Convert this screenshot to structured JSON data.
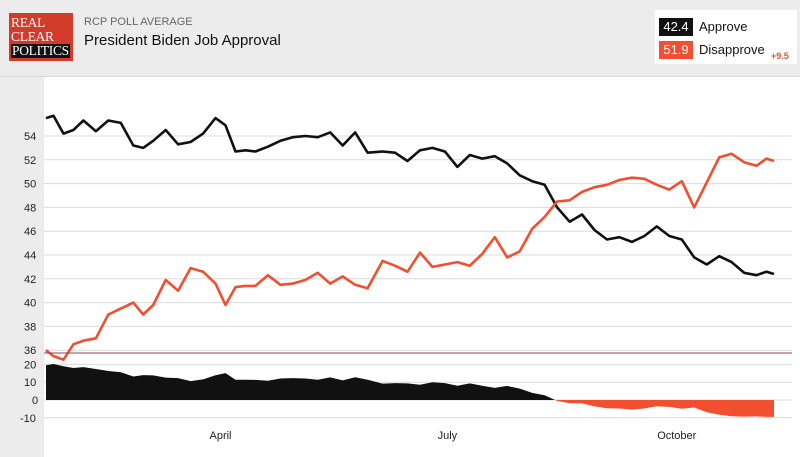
{
  "header": {
    "logo_lines": [
      "REAL",
      "CLEAR",
      "POLITICS"
    ],
    "kicker": "RCP POLL AVERAGE",
    "title": "President Biden Job Approval"
  },
  "legend": {
    "approve": {
      "value": "42.4",
      "label": "Approve",
      "color": "#111111"
    },
    "disapprove": {
      "value": "51.9",
      "label": "Disapprove",
      "color": "#f14f2f"
    },
    "spread": "+9.5"
  },
  "chart_data": {
    "type": "line",
    "x": [
      "2021-01-21",
      "2021-01-24",
      "2021-01-28",
      "2021-02-01",
      "2021-02-05",
      "2021-02-10",
      "2021-02-15",
      "2021-02-20",
      "2021-02-25",
      "2021-03-01",
      "2021-03-05",
      "2021-03-10",
      "2021-03-15",
      "2021-03-20",
      "2021-03-25",
      "2021-03-30",
      "2021-04-03",
      "2021-04-07",
      "2021-04-11",
      "2021-04-15",
      "2021-04-20",
      "2021-04-25",
      "2021-04-30",
      "2021-05-05",
      "2021-05-10",
      "2021-05-15",
      "2021-05-20",
      "2021-05-25",
      "2021-05-30",
      "2021-06-05",
      "2021-06-10",
      "2021-06-15",
      "2021-06-20",
      "2021-06-25",
      "2021-06-30",
      "2021-07-05",
      "2021-07-10",
      "2021-07-15",
      "2021-07-20",
      "2021-07-25",
      "2021-07-30",
      "2021-08-04",
      "2021-08-09",
      "2021-08-14",
      "2021-08-19",
      "2021-08-24",
      "2021-08-29",
      "2021-09-03",
      "2021-09-08",
      "2021-09-13",
      "2021-09-18",
      "2021-09-23",
      "2021-09-28",
      "2021-10-03",
      "2021-10-08",
      "2021-10-13",
      "2021-10-18",
      "2021-10-23",
      "2021-10-28",
      "2021-11-02",
      "2021-11-06",
      "2021-11-09"
    ],
    "series": [
      {
        "name": "Approve",
        "color": "#111111",
        "values": [
          55.5,
          55.7,
          54.2,
          54.5,
          55.3,
          54.4,
          55.3,
          55.1,
          53.2,
          53.0,
          53.6,
          54.5,
          53.3,
          53.5,
          54.2,
          55.5,
          54.9,
          52.7,
          52.8,
          52.7,
          53.1,
          53.6,
          53.9,
          54.0,
          53.9,
          54.3,
          53.2,
          54.3,
          52.6,
          52.7,
          52.6,
          51.9,
          52.8,
          53.0,
          52.7,
          51.4,
          52.4,
          52.1,
          52.3,
          51.7,
          50.7,
          50.2,
          49.9,
          48.0,
          46.8,
          47.4,
          46.1,
          45.3,
          45.5,
          45.1,
          45.6,
          46.4,
          45.6,
          45.3,
          43.8,
          43.2,
          43.9,
          43.4,
          42.5,
          42.3,
          42.6,
          42.4
        ]
      },
      {
        "name": "Disapprove",
        "color": "#f14f2f",
        "values": [
          36.0,
          35.5,
          35.2,
          36.5,
          36.8,
          37.0,
          39.0,
          39.5,
          40.0,
          39.0,
          39.8,
          41.9,
          41.0,
          42.9,
          42.6,
          41.6,
          39.8,
          41.3,
          41.4,
          41.4,
          42.3,
          41.5,
          41.6,
          41.9,
          42.5,
          41.6,
          42.2,
          41.5,
          41.2,
          43.5,
          43.1,
          42.6,
          44.2,
          43.0,
          43.2,
          43.4,
          43.1,
          44.1,
          45.5,
          43.8,
          44.3,
          46.2,
          47.2,
          48.5,
          48.6,
          49.3,
          49.7,
          49.9,
          50.3,
          50.5,
          50.4,
          49.9,
          49.5,
          50.2,
          48.0,
          50.1,
          52.2,
          52.5,
          51.8,
          51.5,
          52.1,
          51.9
        ]
      }
    ],
    "spread_axis": {
      "ticks": [
        "20",
        "10",
        "0",
        "-10"
      ]
    },
    "y_ticks": [
      36,
      38,
      40,
      42,
      44,
      46,
      48,
      50,
      52,
      54
    ],
    "ylim": [
      35,
      57
    ],
    "x_tick_labels": [
      {
        "date": "2021-04-01",
        "label": "April"
      },
      {
        "date": "2021-07-01",
        "label": "July"
      },
      {
        "date": "2021-10-01",
        "label": "October"
      }
    ],
    "grid": true
  }
}
